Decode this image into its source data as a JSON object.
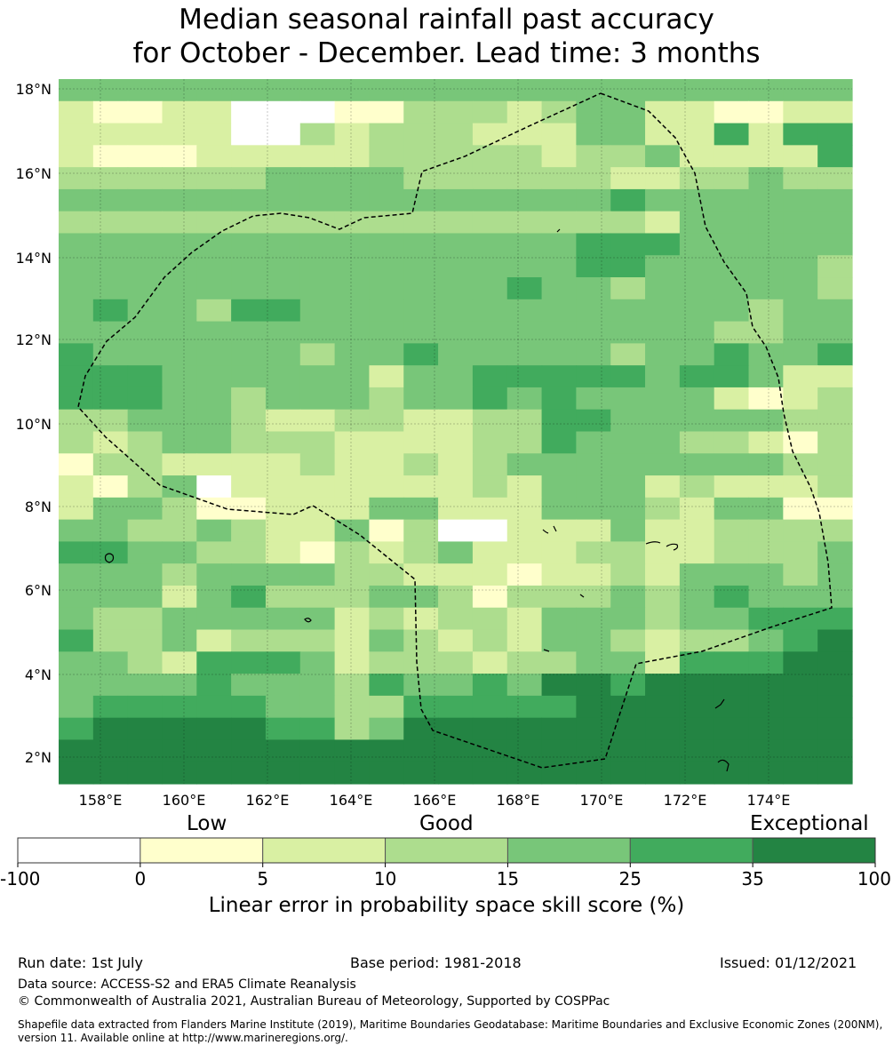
{
  "title": {
    "line1": "Median seasonal rainfall past accuracy",
    "line2": "for October - December. Lead time: 3 months"
  },
  "map": {
    "lat_labels": [
      "18°N",
      "16°N",
      "14°N",
      "12°N",
      "10°N",
      "8°N",
      "6°N",
      "4°N",
      "2°N"
    ],
    "lon_labels": [
      "158°E",
      "160°E",
      "162°E",
      "164°E",
      "166°E",
      "168°E",
      "170°E",
      "172°E",
      "174°E"
    ],
    "boundary_style": "dashed black line",
    "grid": true,
    "grid_rows": [
      "44444444444444444444444",
      "21122000113332344221122",
      "22222003233322244225255",
      "21112222233333233422225",
      "33333344443333332233433",
      "44444444444444445444444",
      "33333333333333333244444",
      "44444444444444455544444",
      "44444444444444455444443",
      "44444444444445443444443",
      "45443554444444444444344",
      "44444444444444444443344",
      "54444443445444443445445",
      "55544444424455555455422",
      "55544344434454544442123",
      "33444322332233554444433",
      "32344333222233544433213",
      "13322223223234444444433",
      "21340222222232444232223",
      "24431122244222444324411",
      "44334322413002224223333",
      "55443321323422233223334",
      "44434444332221223244434",
      "44424533344313334345444",
      "43344444232332444344555",
      "53342333243232443233456",
      "44325554233323344255566",
      "44445444354454665666666",
      "45555544335555566666666",
      "56666655346666666666666",
      "66666666666666666666666",
      "66666666666666666666666"
    ]
  },
  "colorbar": {
    "category_labels": [
      "Low",
      "Good",
      "Exceptional"
    ],
    "ticks": [
      "-100",
      "0",
      "5",
      "10",
      "15",
      "25",
      "35",
      "100"
    ],
    "colors": [
      "#ffffff",
      "#ffffcc",
      "#d9f0a3",
      "#addd8e",
      "#78c679",
      "#41ab5d",
      "#238443"
    ],
    "axis_label": "Linear error in probability space skill score (%)"
  },
  "footer": {
    "run_date": "Run date: 1st July",
    "base_period": "Base period: 1981-2018",
    "issued": "Issued: 01/12/2021",
    "data_source": "Data source: ACCESS-S2 and ERA5 Climate Reanalysis",
    "copyright": "© Commonwealth of Australia 2021, Australian Bureau of Meteorology, Supported by COSPPac",
    "shapefile": "Shapefile data extracted from Flanders Marine Institute (2019), Maritime Boundaries Geodatabase: Maritime Boundaries and Exclusive Economic Zones (200NM), version 11. Available online at http://www.marineregions.org/."
  }
}
